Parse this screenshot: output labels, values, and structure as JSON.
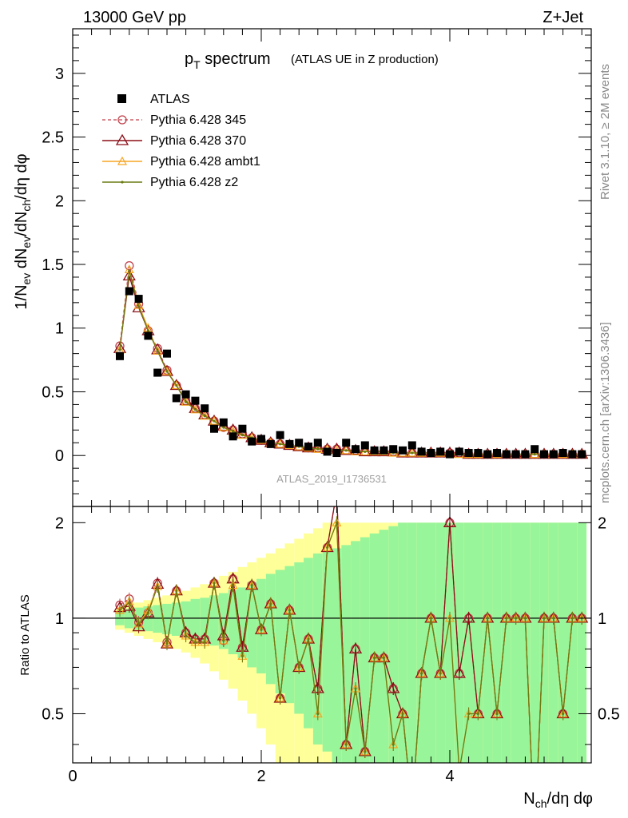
{
  "header": {
    "left": "13000 GeV pp",
    "right": "Z+Jet"
  },
  "side_labels": {
    "rivet": "Rivet 3.1.10, ≥ 2M events",
    "mcplots": "mcplots.cern.ch [arXiv:1306.3436]"
  },
  "watermark": "ATLAS_2019_I1736531",
  "colors": {
    "data": "#000000",
    "p345": "#c0404b",
    "p370": "#8b0e17",
    "ambt1": "#f5a623",
    "z2": "#6b7a12",
    "band_inner": "#99f599",
    "band_outer": "#ffff99"
  },
  "chart_data": [
    {
      "type": "scatter",
      "title": "p_T spectrum",
      "title_main": "p",
      "title_sub": "T",
      "title_rest": " spectrum",
      "title_note": "(ATLAS UE in Z production)",
      "ylabel": "1/N_ev dN_ev/dN_ch/dη dφ",
      "ylabel_parts": [
        "1/N",
        "ev",
        " dN",
        "ev",
        "/dN",
        "ch",
        "/dη dφ"
      ],
      "xlim": [
        0,
        5.5
      ],
      "ylim": [
        -0.4,
        3.35
      ],
      "yticks": [
        0,
        0.5,
        1,
        1.5,
        2,
        2.5,
        3
      ],
      "ytick_labels": [
        "0",
        "0.5",
        "1",
        "1.5",
        "2",
        "2.5",
        "3"
      ],
      "x": [
        0.5,
        0.6,
        0.7,
        0.8,
        0.9,
        1.0,
        1.1,
        1.2,
        1.3,
        1.4,
        1.5,
        1.6,
        1.7,
        1.8,
        1.9,
        2.0,
        2.1,
        2.2,
        2.3,
        2.4,
        2.5,
        2.6,
        2.7,
        2.8,
        2.9,
        3.0,
        3.1,
        3.2,
        3.3,
        3.4,
        3.5,
        3.6,
        3.7,
        3.8,
        3.9,
        4.0,
        4.1,
        4.2,
        4.3,
        4.4,
        4.5,
        4.6,
        4.7,
        4.8,
        4.9,
        5.0,
        5.1,
        5.2,
        5.3,
        5.4
      ],
      "series": [
        {
          "name": "ATLAS",
          "key": "data",
          "marker": "square",
          "values": [
            0.78,
            1.29,
            1.23,
            0.94,
            0.65,
            0.8,
            0.45,
            0.48,
            0.43,
            0.37,
            0.21,
            0.26,
            0.15,
            0.21,
            0.11,
            0.13,
            0.09,
            0.16,
            0.09,
            0.1,
            0.07,
            0.1,
            0.03,
            0.02,
            0.1,
            0.05,
            0.08,
            0.04,
            0.04,
            0.05,
            0.04,
            0.08,
            0.03,
            0.02,
            0.03,
            0.01,
            0.03,
            0.02,
            0.02,
            0.01,
            0.02,
            0.01,
            0.01,
            0.01,
            0.05,
            0.01,
            0.01,
            0.02,
            0.01,
            0.01
          ]
        },
        {
          "name": "Pythia 6.428 345",
          "key": "p345",
          "marker": "circle",
          "dashed": true,
          "values": [
            0.86,
            1.49,
            1.19,
            0.98,
            0.84,
            0.67,
            0.55,
            0.43,
            0.37,
            0.32,
            0.27,
            0.22,
            0.2,
            0.17,
            0.14,
            0.12,
            0.1,
            0.09,
            0.08,
            0.07,
            0.06,
            0.06,
            0.05,
            0.05,
            0.04,
            0.04,
            0.03,
            0.03,
            0.03,
            0.03,
            0.02,
            0.02,
            0.02,
            0.02,
            0.02,
            0.02,
            0.02,
            0.01,
            0.01,
            0.01,
            0.01,
            0.01,
            0.01,
            0.01,
            0.01,
            0.01,
            0.01,
            0.01,
            0.01,
            0.01
          ]
        },
        {
          "name": "Pythia 6.428 370",
          "key": "p370",
          "marker": "triangle",
          "values": [
            0.84,
            1.41,
            1.16,
            0.98,
            0.83,
            0.66,
            0.55,
            0.43,
            0.37,
            0.32,
            0.27,
            0.23,
            0.2,
            0.17,
            0.14,
            0.12,
            0.1,
            0.09,
            0.08,
            0.07,
            0.06,
            0.06,
            0.05,
            0.05,
            0.04,
            0.04,
            0.03,
            0.03,
            0.03,
            0.03,
            0.02,
            0.02,
            0.02,
            0.02,
            0.02,
            0.02,
            0.02,
            0.01,
            0.01,
            0.01,
            0.01,
            0.01,
            0.01,
            0.01,
            0.01,
            0.01,
            0.01,
            0.01,
            0.01,
            0.01
          ]
        },
        {
          "name": "Pythia 6.428 ambt1",
          "key": "ambt1",
          "marker": "triangle-small",
          "values": [
            0.83,
            1.46,
            1.18,
            1.0,
            0.82,
            0.66,
            0.55,
            0.42,
            0.36,
            0.31,
            0.27,
            0.22,
            0.19,
            0.16,
            0.14,
            0.12,
            0.1,
            0.09,
            0.08,
            0.07,
            0.06,
            0.05,
            0.05,
            0.04,
            0.04,
            0.03,
            0.03,
            0.03,
            0.03,
            0.02,
            0.02,
            0.02,
            0.02,
            0.02,
            0.02,
            0.01,
            0.01,
            0.01,
            0.01,
            0.01,
            0.01,
            0.01,
            0.01,
            0.01,
            0.01,
            0.01,
            0.01,
            0.01,
            0.01,
            0.01
          ]
        },
        {
          "name": "Pythia 6.428 z2",
          "key": "z2",
          "marker": "dot",
          "values": [
            0.83,
            1.45,
            1.17,
            0.98,
            0.82,
            0.66,
            0.55,
            0.42,
            0.36,
            0.31,
            0.27,
            0.22,
            0.19,
            0.16,
            0.14,
            0.12,
            0.1,
            0.09,
            0.08,
            0.07,
            0.06,
            0.05,
            0.05,
            0.04,
            0.04,
            0.03,
            0.03,
            0.03,
            0.03,
            0.02,
            0.02,
            0.02,
            0.02,
            0.02,
            0.02,
            0.01,
            0.01,
            0.01,
            0.01,
            0.01,
            0.01,
            0.01,
            0.01,
            0.01,
            0.01,
            0.01,
            0.01,
            0.01,
            0.01,
            0.01
          ]
        }
      ]
    },
    {
      "type": "line",
      "ylabel": "Ratio to ATLAS",
      "xlabel": "N_ch/dη dφ",
      "xlabel_parts": [
        "N",
        "ch",
        "/dη dφ"
      ],
      "xlim": [
        0,
        5.5
      ],
      "ylim": [
        0.35,
        2.25
      ],
      "xticks": [
        0,
        2,
        4
      ],
      "xtick_labels": [
        "0",
        "2",
        "4"
      ],
      "yticks": [
        0.5,
        1,
        2
      ],
      "ytick_labels": [
        "0.5",
        "1",
        "2"
      ],
      "reference_line": 1,
      "x": [
        0.5,
        0.6,
        0.7,
        0.8,
        0.9,
        1.0,
        1.1,
        1.2,
        1.3,
        1.4,
        1.5,
        1.6,
        1.7,
        1.8,
        1.9,
        2.0,
        2.1,
        2.2,
        2.3,
        2.4,
        2.5,
        2.6,
        2.7,
        2.8,
        2.9,
        3.0,
        3.1,
        3.2,
        3.3,
        3.4,
        3.5,
        3.6,
        3.7,
        3.8,
        3.9,
        4.0,
        4.1,
        4.2,
        4.3,
        4.4,
        4.5,
        4.6,
        4.7,
        4.8,
        4.9,
        5.0,
        5.1,
        5.2,
        5.3,
        5.4
      ],
      "band_inner": [
        0.05,
        0.07,
        0.08,
        0.09,
        0.1,
        0.11,
        0.12,
        0.13,
        0.15,
        0.16,
        0.18,
        0.2,
        0.23,
        0.25,
        0.3,
        0.33,
        0.38,
        0.42,
        0.46,
        0.5,
        0.55,
        0.6,
        0.62,
        0.66,
        0.7,
        0.75,
        0.8,
        0.85,
        0.9,
        0.95,
        1.0,
        1.0,
        1.0,
        1.0,
        1.0,
        1.0,
        1.0,
        1.0,
        1.0,
        1.0,
        1.0,
        1.0,
        1.0,
        1.0,
        1.0,
        1.0,
        1.0,
        1.0,
        1.0,
        1.0
      ],
      "band_outer": [
        0.08,
        0.1,
        0.12,
        0.14,
        0.16,
        0.18,
        0.2,
        0.22,
        0.25,
        0.28,
        0.32,
        0.36,
        0.4,
        0.45,
        0.5,
        0.55,
        0.6,
        0.66,
        0.72,
        0.78,
        0.85,
        0.92,
        1.0,
        1.0,
        1.0,
        1.0,
        1.0,
        1.0,
        1.0,
        1.0,
        1.0,
        1.0,
        1.0,
        1.0,
        1.0,
        1.0,
        1.0,
        1.0,
        1.0,
        1.0,
        1.0,
        1.0,
        1.0,
        1.0,
        1.0,
        1.0,
        1.0,
        1.0,
        1.0,
        1.0
      ],
      "series": [
        {
          "name": "Pythia 6.428 345",
          "key": "p345",
          "marker": "circle",
          "dashed": true,
          "values": [
            1.1,
            1.15,
            0.97,
            1.04,
            1.29,
            0.84,
            1.22,
            0.9,
            0.86,
            0.86,
            1.29,
            0.85,
            1.33,
            0.81,
            1.27,
            0.92,
            1.11,
            0.56,
            1.06,
            0.7,
            0.86,
            0.6,
            1.67,
            2.5,
            0.4,
            0.8,
            0.38,
            0.75,
            0.75,
            0.6,
            0.5,
            0.25,
            0.67,
            1.0,
            0.67,
            2.0,
            0.67,
            1.0,
            0.5,
            1.0,
            0.5,
            1.0,
            1.0,
            1.0,
            0.2,
            1.0,
            1.0,
            0.5,
            1.0,
            1.0
          ]
        },
        {
          "name": "Pythia 6.428 370",
          "key": "p370",
          "marker": "triangle",
          "values": [
            1.08,
            1.09,
            0.94,
            1.04,
            1.28,
            0.83,
            1.22,
            0.9,
            0.86,
            0.86,
            1.29,
            0.88,
            1.33,
            0.81,
            1.27,
            0.92,
            1.11,
            0.56,
            1.06,
            0.7,
            0.86,
            0.6,
            1.67,
            2.5,
            0.4,
            0.8,
            0.38,
            0.75,
            0.75,
            0.6,
            0.5,
            0.25,
            0.67,
            1.0,
            0.67,
            2.0,
            0.67,
            1.0,
            0.5,
            1.0,
            0.5,
            1.0,
            1.0,
            1.0,
            0.2,
            1.0,
            1.0,
            0.5,
            1.0,
            1.0
          ]
        },
        {
          "name": "Pythia 6.428 ambt1",
          "key": "ambt1",
          "marker": "triangle-small",
          "values": [
            1.06,
            1.13,
            0.96,
            1.06,
            1.26,
            0.83,
            1.22,
            0.88,
            0.84,
            0.84,
            1.29,
            0.85,
            1.27,
            0.76,
            1.27,
            0.92,
            1.11,
            0.56,
            1.06,
            0.7,
            0.86,
            0.5,
            1.67,
            2.0,
            0.4,
            0.6,
            0.38,
            0.75,
            0.75,
            0.4,
            0.5,
            0.25,
            0.67,
            1.0,
            0.67,
            1.0,
            0.33,
            0.5,
            0.5,
            1.0,
            0.5,
            1.0,
            1.0,
            1.0,
            0.2,
            1.0,
            1.0,
            0.5,
            1.0,
            1.0
          ]
        },
        {
          "name": "Pythia 6.428 z2",
          "key": "z2",
          "marker": "dot",
          "values": [
            1.06,
            1.12,
            0.96,
            1.04,
            1.26,
            0.83,
            1.22,
            0.88,
            0.84,
            0.84,
            1.29,
            0.85,
            1.27,
            0.76,
            1.27,
            0.92,
            1.11,
            0.56,
            1.06,
            0.7,
            0.86,
            0.5,
            1.67,
            2.0,
            0.4,
            0.6,
            0.38,
            0.75,
            0.75,
            0.4,
            0.5,
            0.25,
            0.67,
            1.0,
            0.67,
            1.0,
            0.33,
            0.5,
            0.5,
            1.0,
            0.5,
            1.0,
            1.0,
            1.0,
            0.2,
            1.0,
            1.0,
            0.5,
            1.0,
            1.0
          ]
        }
      ]
    }
  ]
}
